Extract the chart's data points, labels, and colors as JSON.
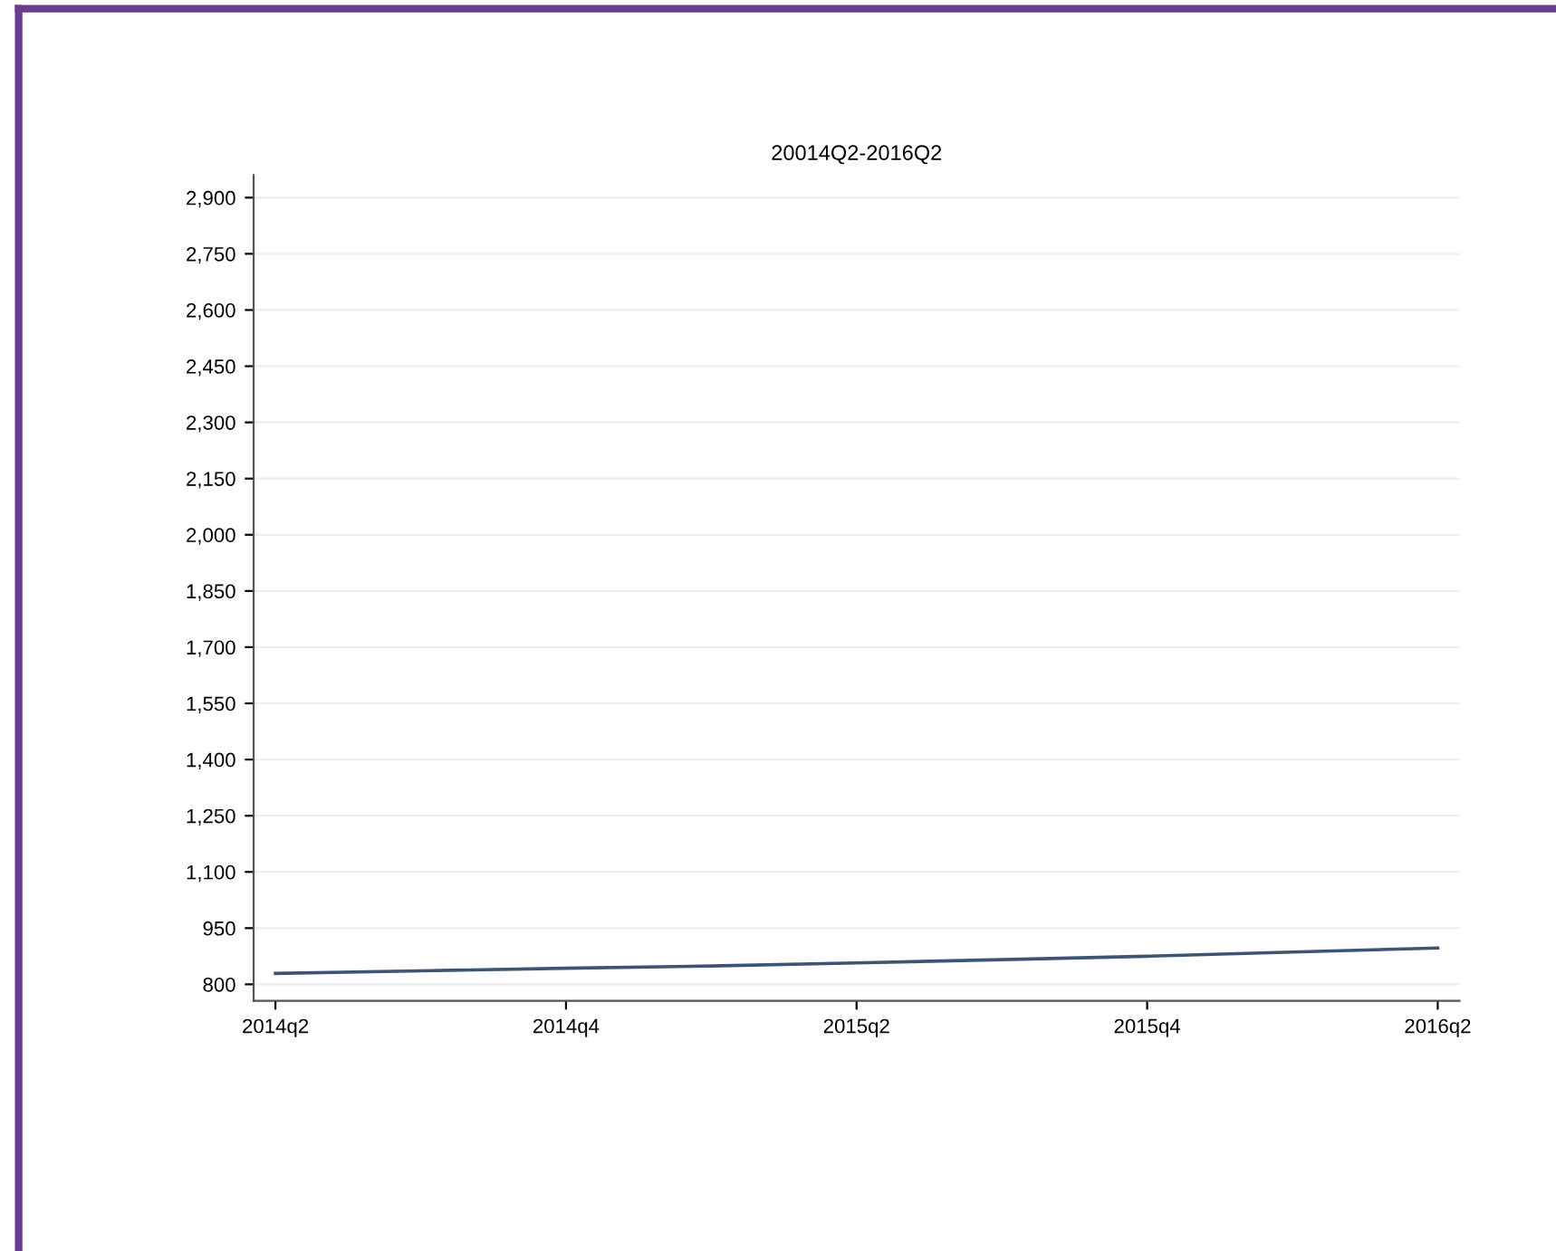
{
  "chart_data": {
    "type": "line",
    "title": "20014Q2-2016Q2",
    "categories": [
      "2014q2",
      null,
      "2014q4",
      null,
      "2015q2",
      null,
      "2015q4",
      null,
      "2016q2"
    ],
    "series": [
      {
        "color": "#3b5573",
        "values": [
          829,
          836,
          843,
          849,
          857,
          866,
          875,
          886,
          897
        ]
      }
    ],
    "ylim": [
      756,
      2960
    ],
    "yticks": [
      {
        "value": 800,
        "label": "800"
      },
      {
        "value": 950,
        "label": "950"
      },
      {
        "value": 1100,
        "label": "1,100"
      },
      {
        "value": 1250,
        "label": "1,250"
      },
      {
        "value": 1400,
        "label": "1,400"
      },
      {
        "value": 1550,
        "label": "1,550"
      },
      {
        "value": 1700,
        "label": "1,700"
      },
      {
        "value": 1850,
        "label": "1,850"
      },
      {
        "value": 2000,
        "label": "2,000"
      },
      {
        "value": 2150,
        "label": "2,150"
      },
      {
        "value": 2300,
        "label": "2,300"
      },
      {
        "value": 2450,
        "label": "2,450"
      },
      {
        "value": 2600,
        "label": "2,600"
      },
      {
        "value": 2750,
        "label": "2,750"
      },
      {
        "value": 2900,
        "label": "2,900"
      }
    ],
    "grid": "y"
  }
}
